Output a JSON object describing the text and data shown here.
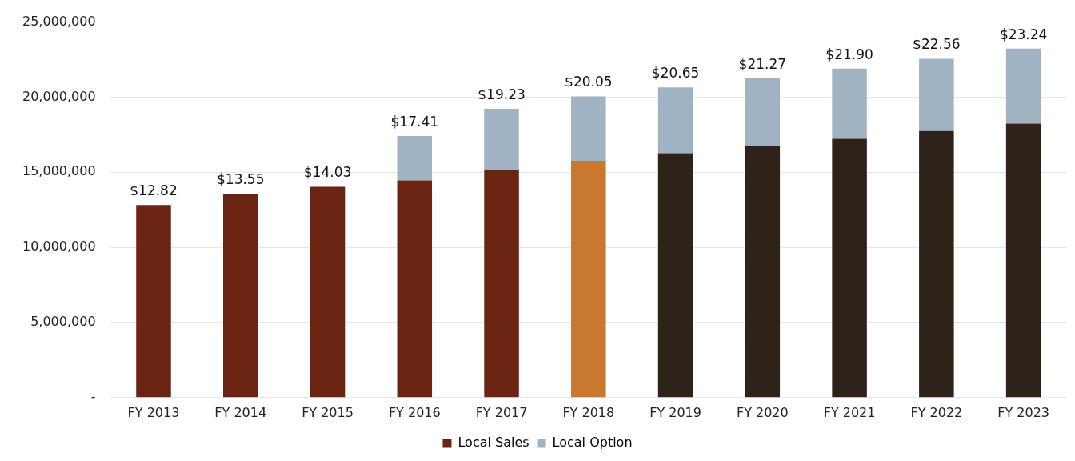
{
  "chart_data": {
    "type": "bar",
    "stacked": true,
    "categories": [
      "FY 2013",
      "FY 2014",
      "FY 2015",
      "FY 2016",
      "FY 2017",
      "FY 2018",
      "FY 2019",
      "FY 2020",
      "FY 2021",
      "FY 2022",
      "FY 2023"
    ],
    "series": [
      {
        "name": "Local Sales",
        "color": "#6b2312",
        "colors": [
          "#6b2312",
          "#6b2312",
          "#6b2312",
          "#6b2312",
          "#6b2312",
          "#c8792f",
          "#2e2219",
          "#2e2219",
          "#2e2219",
          "#2e2219",
          "#2e2219"
        ],
        "values": [
          12820000,
          13550000,
          14030000,
          14450000,
          15120000,
          15760000,
          16270000,
          16730000,
          17230000,
          17740000,
          18240000
        ]
      },
      {
        "name": "Local Option",
        "color": "#a0b3c3",
        "values": [
          null,
          null,
          null,
          2960000,
          4110000,
          4290000,
          4380000,
          4540000,
          4670000,
          4820000,
          5000000
        ]
      }
    ],
    "annotations": [
      {
        "text": "$12.82",
        "x": "FY 2013",
        "y": 12820000
      },
      {
        "text": "$13.55",
        "x": "FY 2014",
        "y": 13550000
      },
      {
        "text": "$14.03",
        "x": "FY 2015",
        "y": 14030000
      },
      {
        "text": "$17.41",
        "x": "FY 2016",
        "y": 17410000
      },
      {
        "text": "$19.23",
        "x": "FY 2017",
        "y": 19230000
      },
      {
        "text": "$20.05",
        "x": "FY 2018",
        "y": 20050000
      },
      {
        "text": "$20.65",
        "x": "FY 2019",
        "y": 20650000
      },
      {
        "text": "$21.27",
        "x": "FY 2020",
        "y": 21270000
      },
      {
        "text": "$21.90",
        "x": "FY 2021",
        "y": 21900000
      },
      {
        "text": "$22.56",
        "x": "FY 2022",
        "y": 22560000
      },
      {
        "text": "$23.24",
        "x": "FY 2023",
        "y": 23240000
      }
    ],
    "ylim": [
      0,
      25000000
    ],
    "yticks": [
      {
        "value": 0,
        "label": "-"
      },
      {
        "value": 5000000,
        "label": "5,000,000"
      },
      {
        "value": 10000000,
        "label": "10,000,000"
      },
      {
        "value": 15000000,
        "label": "15,000,000"
      },
      {
        "value": 20000000,
        "label": "20,000,000"
      },
      {
        "value": 25000000,
        "label": "25,000,000"
      }
    ],
    "grid": "y",
    "legend": "bottom"
  }
}
